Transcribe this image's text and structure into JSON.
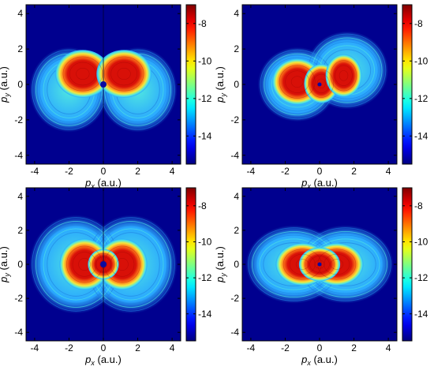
{
  "chart_data": [
    {
      "type": "heatmap",
      "panel": "top-left",
      "title": "",
      "xlabel_var": "p",
      "xlabel_sub": "x",
      "xlabel_unit": "(a.u.)",
      "ylabel_var": "p",
      "ylabel_sub": "y",
      "ylabel_unit": "(a.u.)",
      "xlim": [
        -4.5,
        4.5
      ],
      "ylim": [
        -4.5,
        4.5
      ],
      "xticks": [
        -4,
        -2,
        0,
        2,
        4
      ],
      "yticks": [
        -4,
        -2,
        0,
        2,
        4
      ],
      "colorbar": {
        "range": [
          -15.5,
          -7
        ],
        "ticks": [
          -8,
          -10,
          -12,
          -14
        ],
        "colormap": "jet"
      },
      "pattern": "butterfly-upper",
      "grid": false
    },
    {
      "type": "heatmap",
      "panel": "top-right",
      "title": "",
      "xlabel_var": "p",
      "xlabel_sub": "x",
      "xlabel_unit": "(a.u.)",
      "ylabel_var": "p",
      "ylabel_sub": "y",
      "ylabel_unit": "(a.u.)",
      "xlim": [
        -4.5,
        4.5
      ],
      "ylim": [
        -4.5,
        4.5
      ],
      "xticks": [
        -4,
        -2,
        0,
        2,
        4
      ],
      "yticks": [
        -4,
        -2,
        0,
        2,
        4
      ],
      "colorbar": {
        "range": [
          -15.5,
          -7
        ],
        "ticks": [
          -8,
          -10,
          -12,
          -14
        ],
        "colormap": "jet"
      },
      "pattern": "tilted-peanut",
      "grid": false
    },
    {
      "type": "heatmap",
      "panel": "bottom-left",
      "title": "",
      "xlabel_var": "p",
      "xlabel_sub": "x",
      "xlabel_unit": "(a.u.)",
      "ylabel_var": "p",
      "ylabel_sub": "y",
      "ylabel_unit": "(a.u.)",
      "xlim": [
        -4.5,
        4.5
      ],
      "ylim": [
        -4.5,
        4.5
      ],
      "xticks": [
        -4,
        -2,
        0,
        2,
        4
      ],
      "yticks": [
        -4,
        -2,
        0,
        2,
        4
      ],
      "colorbar": {
        "range": [
          -15.5,
          -7
        ],
        "ticks": [
          -8,
          -10,
          -12,
          -14
        ],
        "colormap": "jet"
      },
      "pattern": "butterfly-symmetric",
      "grid": false
    },
    {
      "type": "heatmap",
      "panel": "bottom-right",
      "title": "",
      "xlabel_var": "p",
      "xlabel_sub": "x",
      "xlabel_unit": "(a.u.)",
      "ylabel_var": "p",
      "ylabel_sub": "y",
      "ylabel_unit": "(a.u.)",
      "xlim": [
        -4.5,
        4.5
      ],
      "ylim": [
        -4.5,
        4.5
      ],
      "xticks": [
        -4,
        -2,
        0,
        2,
        4
      ],
      "yticks": [
        -4,
        -2,
        0,
        2,
        4
      ],
      "colorbar": {
        "range": [
          -15.5,
          -7
        ],
        "ticks": [
          -8,
          -10,
          -12,
          -14
        ],
        "colormap": "jet"
      },
      "pattern": "peanut-symmetric",
      "grid": false
    }
  ],
  "colors": {
    "background_low": "#00008f",
    "ring": "#2aa8ff",
    "cyan": "#50e8e0",
    "yellow": "#f5e83a",
    "orange": "#ff7a1a",
    "red": "#d81008",
    "dark_red": "#8a0000",
    "center_dot": "#0a0aa0"
  }
}
